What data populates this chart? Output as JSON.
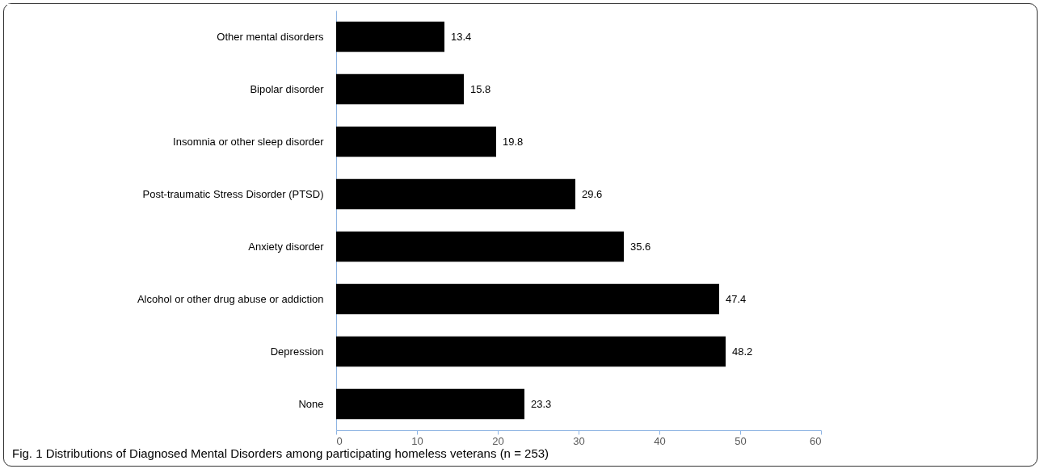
{
  "chart_data": {
    "type": "bar",
    "orientation": "horizontal",
    "categories": [
      "Other mental disorders",
      "Bipolar disorder",
      "Insomnia or other sleep disorder",
      "Post-traumatic Stress Disorder (PTSD)",
      "Anxiety disorder",
      "Alcohol or other drug abuse or addiction",
      "Depression",
      "None"
    ],
    "values": [
      13.4,
      15.8,
      19.8,
      29.6,
      35.6,
      47.4,
      48.2,
      23.3
    ],
    "color": "#000000",
    "xlim": [
      0,
      60
    ],
    "xticks": [
      0,
      10,
      20,
      30,
      40,
      50,
      60
    ],
    "grid": false,
    "data_labels": true,
    "annotations": [
      "Fig. 1 Distributions of Diagnosed Mental Disorders among participating homeless veterans (n = 253)"
    ]
  }
}
